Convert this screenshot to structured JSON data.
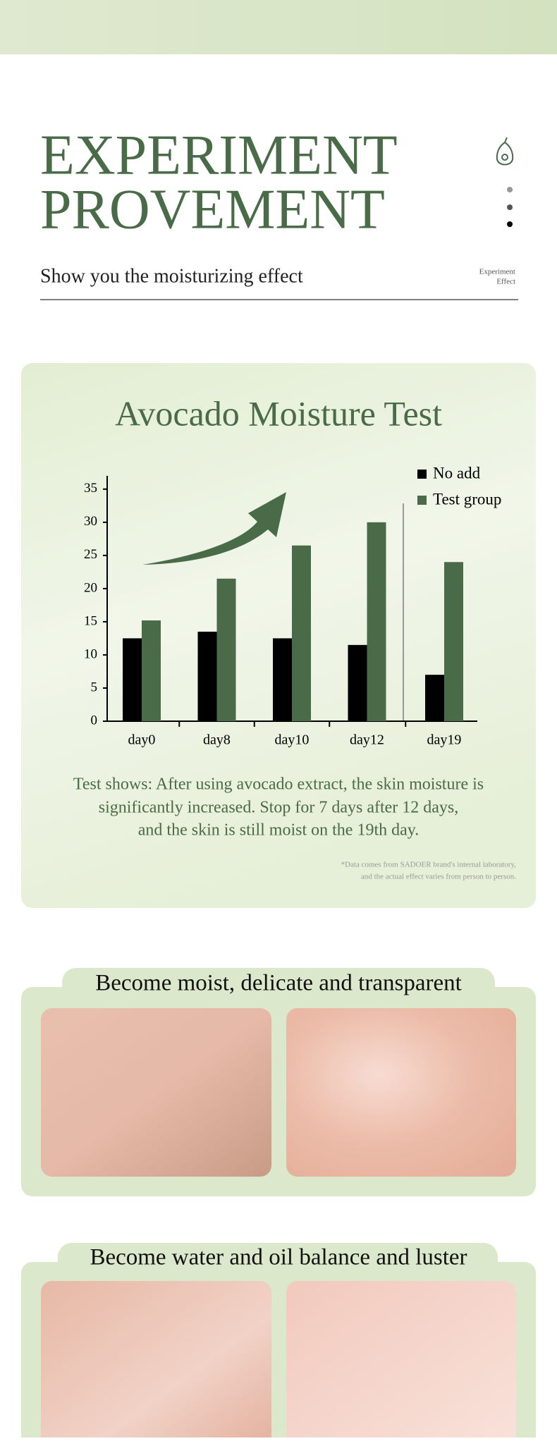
{
  "header": {
    "title_lines": [
      "EXPERIMENT",
      "PROVEMENT"
    ],
    "subtitle": "Show you the moisturizing effect",
    "side_label": [
      "Experiment",
      "Effect"
    ]
  },
  "chart_data": {
    "type": "bar",
    "title": "Avocado Moisture Test",
    "categories": [
      "day0",
      "day8",
      "day10",
      "day12",
      "day19"
    ],
    "series": [
      {
        "name": "No add",
        "color": "#000000",
        "values": [
          12.5,
          13.5,
          12.5,
          11.5,
          7
        ]
      },
      {
        "name": "Test group",
        "color": "#4a6b48",
        "values": [
          15.2,
          21.5,
          26.5,
          30,
          24
        ]
      }
    ],
    "ylim": [
      0,
      37
    ],
    "yticks": [
      0,
      5,
      10,
      15,
      20,
      25,
      30,
      35
    ],
    "legend": "top-right"
  },
  "caption": [
    "Test shows: After using avocado extract, the skin moisture is",
    "significantly increased. Stop for 7 days after 12 days,",
    "and the skin is still moist on the 19th day."
  ],
  "footnote": [
    "*Data comes from SADOER brand's internal laboratory,",
    "and the actual effect varies from person to person."
  ],
  "sections": [
    {
      "title": "Become moist, delicate and transparent"
    },
    {
      "title": "Become water and oil balance and luster"
    }
  ]
}
